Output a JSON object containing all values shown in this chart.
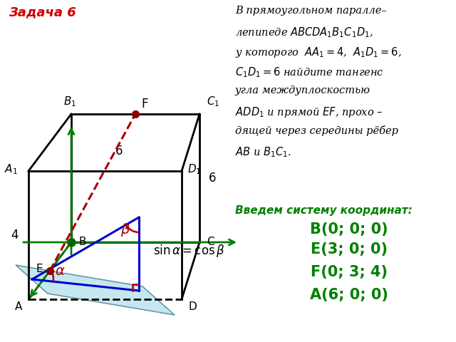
{
  "title": "Задача 6",
  "title_color": "#cc0000",
  "bg_color": "#ffffff",
  "box_color": "#000000",
  "axis_color": "#008000",
  "dashed_color": "#aa0000",
  "coord_color": "#008000",
  "coords": [
    "B(0; 0; 0)",
    "E(3; 0; 0)",
    "F(0; 3; 4)",
    "A(6; 0; 0)"
  ],
  "coord_intro": "Введем систему координат:",
  "problem_lines": [
    "В прямоугольном паралле–",
    "лепипеде $ABCDA_1B_1C_1D_1$,",
    "у которого  $AA_1 = 4$,  $A_1D_1 = 6$,",
    "$C_1D_1 = 6$ найдите тангенс",
    "угла междуплоскостью",
    "$ADD_1$ и прямой $EF$, прохо –",
    "дящей через середины рёбер",
    "$AB$ и $B_1C_1$."
  ]
}
